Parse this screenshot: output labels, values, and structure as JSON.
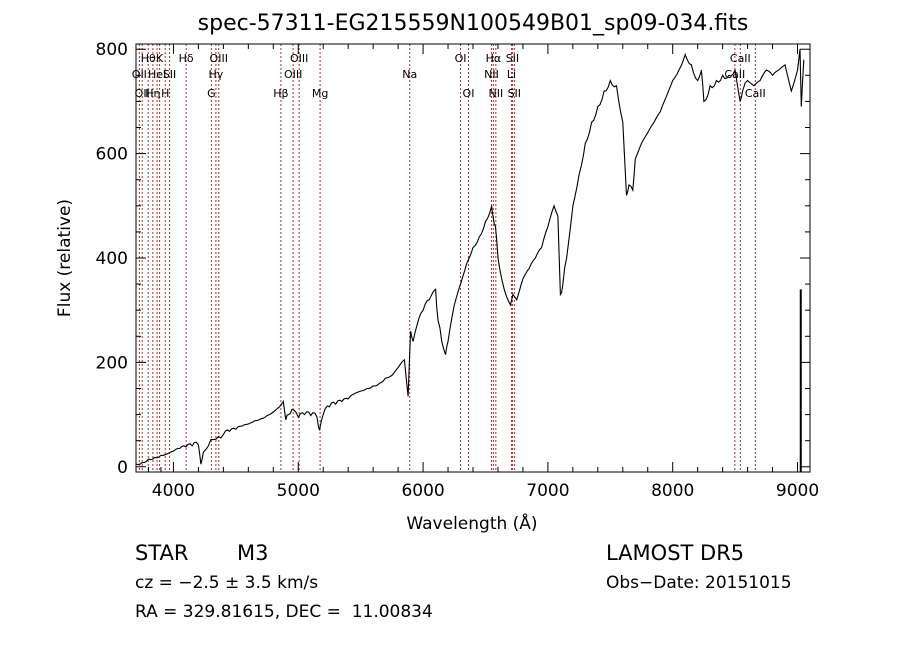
{
  "chart_data": {
    "type": "line",
    "title": "spec-57311-EG215559N100549B01_sp09-034.fits",
    "xlabel": "Wavelength (Å)",
    "ylabel": "Flux (relative)",
    "xlim": [
      3700,
      9100
    ],
    "ylim": [
      -10,
      810
    ],
    "x_ticks": [
      4000,
      5000,
      6000,
      7000,
      8000,
      9000
    ],
    "y_ticks": [
      0,
      200,
      400,
      600,
      800
    ],
    "grid": false,
    "line_color": "#000000",
    "marker_color": "#b03030",
    "series": [
      {
        "x": [
          3700,
          3750,
          3800,
          3850,
          3900,
          3950,
          4000,
          4050,
          4100,
          4150,
          4200,
          4220,
          4240,
          4280,
          4320,
          4360,
          4400,
          4450,
          4500,
          4550,
          4600,
          4650,
          4700,
          4750,
          4800,
          4850,
          4880,
          4900,
          4920,
          4950,
          5000,
          5050,
          5100,
          5150,
          5170,
          5200,
          5250,
          5300,
          5350,
          5400,
          5450,
          5500,
          5550,
          5600,
          5650,
          5700,
          5750,
          5800,
          5850,
          5880,
          5900,
          5920,
          5950,
          6000,
          6050,
          6080,
          6100,
          6120,
          6150,
          6180,
          6200,
          6250,
          6300,
          6350,
          6400,
          6450,
          6500,
          6550,
          6560,
          6580,
          6600,
          6650,
          6700,
          6720,
          6750,
          6800,
          6850,
          6900,
          6950,
          7000,
          7050,
          7080,
          7100,
          7120,
          7150,
          7200,
          7250,
          7300,
          7350,
          7400,
          7450,
          7500,
          7550,
          7600,
          7630,
          7650,
          7680,
          7700,
          7750,
          7800,
          7850,
          7900,
          7950,
          8000,
          8050,
          8100,
          8150,
          8200,
          8230,
          8250,
          8300,
          8350,
          8400,
          8450,
          8500,
          8540,
          8560,
          8600,
          8650,
          8700,
          8750,
          8800,
          8850,
          8900,
          8950,
          9000,
          9020,
          9030,
          9050
        ],
        "y": [
          5,
          8,
          15,
          18,
          22,
          25,
          30,
          35,
          38,
          40,
          42,
          5,
          28,
          40,
          52,
          58,
          62,
          68,
          72,
          78,
          82,
          88,
          92,
          98,
          105,
          115,
          125,
          90,
          100,
          110,
          95,
          100,
          98,
          95,
          70,
          100,
          115,
          120,
          125,
          130,
          140,
          145,
          150,
          155,
          160,
          170,
          175,
          190,
          205,
          135,
          260,
          240,
          270,
          300,
          320,
          335,
          340,
          280,
          240,
          215,
          240,
          310,
          350,
          390,
          420,
          440,
          470,
          500,
          480,
          460,
          400,
          340,
          310,
          330,
          320,
          360,
          380,
          400,
          420,
          460,
          500,
          480,
          330,
          350,
          400,
          500,
          560,
          620,
          660,
          690,
          720,
          740,
          730,
          660,
          520,
          540,
          530,
          590,
          620,
          640,
          660,
          680,
          710,
          740,
          760,
          790,
          770,
          740,
          760,
          700,
          730,
          740,
          750,
          750,
          760,
          700,
          720,
          740,
          730,
          740,
          760,
          750,
          760,
          770,
          720,
          760,
          800,
          690,
          780
        ]
      }
    ],
    "line_markers": [
      {
        "x": 3727,
        "label": "OII",
        "row": 2
      },
      {
        "x": 3750,
        "label": "OII",
        "row": 3
      },
      {
        "x": 3798,
        "label": "Hθ",
        "row": 1
      },
      {
        "x": 3835,
        "label": "Hη",
        "row": 3
      },
      {
        "x": 3869,
        "label": "HeI",
        "row": 2
      },
      {
        "x": 3889,
        "label": "K",
        "row": 1
      },
      {
        "x": 3934,
        "label": "H",
        "row": 3
      },
      {
        "x": 3969,
        "label": "SII",
        "row": 2
      },
      {
        "x": 4102,
        "label": "Hδ",
        "row": 1
      },
      {
        "x": 4304,
        "label": "G",
        "row": 3
      },
      {
        "x": 4340,
        "label": "Hγ",
        "row": 2
      },
      {
        "x": 4363,
        "label": "OIII",
        "row": 1
      },
      {
        "x": 4861,
        "label": "Hβ",
        "row": 3
      },
      {
        "x": 4959,
        "label": "OIII",
        "row": 2
      },
      {
        "x": 5007,
        "label": "OIII",
        "row": 1
      },
      {
        "x": 5175,
        "label": "Mg",
        "row": 3
      },
      {
        "x": 5893,
        "label": "Na",
        "row": 2
      },
      {
        "x": 6300,
        "label": "OI",
        "row": 1
      },
      {
        "x": 6364,
        "label": "OI",
        "row": 3
      },
      {
        "x": 6548,
        "label": "NII",
        "row": 2
      },
      {
        "x": 6563,
        "label": "Hα",
        "row": 1
      },
      {
        "x": 6583,
        "label": "NII",
        "row": 3
      },
      {
        "x": 6708,
        "label": "Li",
        "row": 2
      },
      {
        "x": 6716,
        "label": "SII",
        "row": 1
      },
      {
        "x": 6731,
        "label": "SII",
        "row": 3
      },
      {
        "x": 8498,
        "label": "CaII",
        "row": 2
      },
      {
        "x": 8542,
        "label": "CaII",
        "row": 1
      },
      {
        "x": 8662,
        "label": "CaII",
        "row": 3
      }
    ]
  },
  "info": {
    "object_class": "STAR",
    "subclass": "M3",
    "survey": "LAMOST DR5",
    "redshift": "cz = −2.5 ± 3.5 km/s",
    "obs_date": "Obs−Date: 20151015",
    "coords": "RA = 329.81615, DEC =  11.00834"
  }
}
